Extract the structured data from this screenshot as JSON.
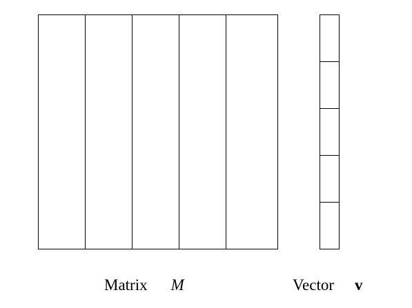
{
  "matrix": {
    "label_word": "Matrix",
    "label_symbol": "M",
    "columns": 5
  },
  "vector": {
    "label_word": "Vector",
    "label_symbol": "v",
    "cells": 5
  }
}
